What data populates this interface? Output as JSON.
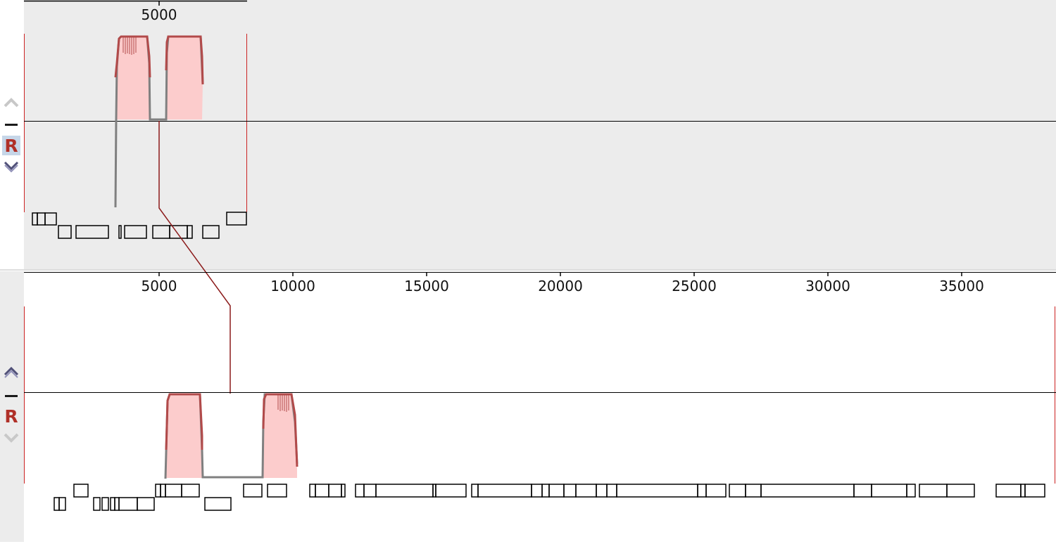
{
  "top_panel": {
    "ruler": {
      "ticks": [
        "5000"
      ]
    },
    "controls": {
      "up_icon": "chevron-up-icon",
      "minus_icon": "minus-icon",
      "reverse_label": "R",
      "down_icon": "chevron-down-icon"
    },
    "background": "#ececec"
  },
  "bottom_panel": {
    "ruler": {
      "ticks": [
        "5000",
        "10000",
        "15000",
        "20000",
        "25000",
        "30000",
        "35000"
      ]
    },
    "controls": {
      "up_icon": "chevron-up-icon",
      "minus_icon": "minus-icon",
      "reverse_label": "R",
      "down_icon": "chevron-down-icon"
    },
    "background": "#ffffff"
  },
  "colors": {
    "coverage_fill": "#fccccc",
    "coverage_line": "#b24a4a",
    "gap_line": "#808080",
    "boundary_line": "#cc2222",
    "link_line": "#8b1a1a",
    "reverse_label": "#b03028"
  }
}
